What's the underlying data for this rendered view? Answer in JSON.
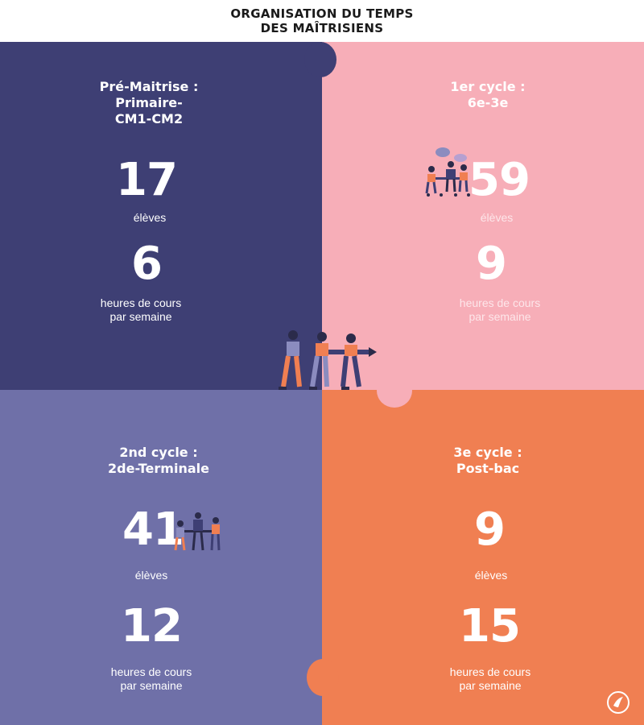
{
  "title": {
    "line1": "ORGANISATION DU TEMPS",
    "line2": "DES MAÎTRISIENS"
  },
  "colors": {
    "q1": "#3e3f74",
    "q2": "#f7aeb8",
    "q3": "#6f70a8",
    "q4": "#f07f52",
    "header": "#ffffff",
    "text": "#ffffff",
    "muted": "#fde6ea"
  },
  "quadrants": [
    {
      "category": "Pré-Maitrise :\nPrimaire-\nCM1-CM2",
      "students": "17",
      "students_label": "élèves",
      "hours": "6",
      "hours_label": "heures de cours\npar semaine"
    },
    {
      "category": "1er cycle :\n6e-3e",
      "students": "59",
      "students_label": "élèves",
      "hours": "9",
      "hours_label": "heures de cours\npar semaine"
    },
    {
      "category": "2nd cycle :\n2de-Terminale",
      "students": "41",
      "students_label": "élèves",
      "hours": "12",
      "hours_label": "heures de cours\npar semaine"
    },
    {
      "category": "3e cycle :\nPost-bac",
      "students": "9",
      "students_label": "élèves",
      "hours": "15",
      "hours_label": "heures de cours\npar semaine"
    }
  ],
  "icons": {
    "team_pulling": "team-pulling-pencil-illustration",
    "meeting": "people-meeting-illustration",
    "logo": "bird-logo-icon"
  }
}
